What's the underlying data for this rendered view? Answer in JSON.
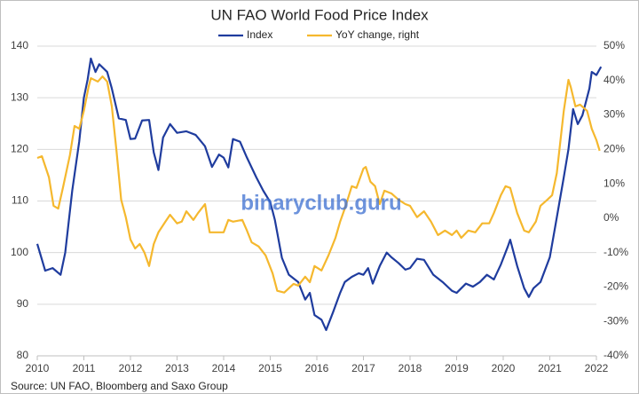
{
  "chart_data": {
    "type": "line",
    "title": "UN FAO World Food Price Index",
    "source": "Source:  UN FAO, Bloomberg and Saxo Group",
    "watermark": "binaryclub.guru",
    "xlim": [
      2010,
      2022.1
    ],
    "xticks": [
      2010,
      2011,
      2012,
      2013,
      2014,
      2015,
      2016,
      2017,
      2018,
      2019,
      2020,
      2021,
      2022
    ],
    "ylim": [
      80,
      140
    ],
    "yticks": [
      80,
      90,
      100,
      110,
      120,
      130,
      140
    ],
    "y2lim": [
      -40,
      50
    ],
    "y2ticks": [
      {
        "value": -40,
        "label": "-40%"
      },
      {
        "value": -30,
        "label": "-30%"
      },
      {
        "value": -20,
        "label": "-20%"
      },
      {
        "value": -10,
        "label": "-10%"
      },
      {
        "value": 0,
        "label": "0%"
      },
      {
        "value": 10,
        "label": "10%"
      },
      {
        "value": 20,
        "label": "20%"
      },
      {
        "value": 30,
        "label": "30%"
      },
      {
        "value": 40,
        "label": "40%"
      },
      {
        "value": 50,
        "label": "50%"
      }
    ],
    "grid": true,
    "legend": "top",
    "series": [
      {
        "name": "Index",
        "color": "#1f3c9e",
        "x": [
          2010.0,
          2010.17,
          2010.33,
          2010.5,
          2010.6,
          2010.75,
          2010.9,
          2011.0,
          2011.08,
          2011.15,
          2011.25,
          2011.33,
          2011.5,
          2011.6,
          2011.75,
          2011.9,
          2012.0,
          2012.1,
          2012.25,
          2012.4,
          2012.5,
          2012.6,
          2012.7,
          2012.85,
          2013.0,
          2013.2,
          2013.4,
          2013.6,
          2013.75,
          2013.9,
          2014.0,
          2014.1,
          2014.2,
          2014.35,
          2014.5,
          2014.7,
          2014.85,
          2015.0,
          2015.1,
          2015.25,
          2015.4,
          2015.6,
          2015.75,
          2015.85,
          2015.95,
          2016.1,
          2016.2,
          2016.35,
          2016.5,
          2016.6,
          2016.75,
          2016.9,
          2017.0,
          2017.1,
          2017.2,
          2017.35,
          2017.5,
          2017.6,
          2017.75,
          2017.9,
          2018.0,
          2018.15,
          2018.3,
          2018.5,
          2018.7,
          2018.9,
          2019.0,
          2019.2,
          2019.35,
          2019.5,
          2019.65,
          2019.8,
          2019.95,
          2020.1,
          2020.15,
          2020.3,
          2020.45,
          2020.55,
          2020.65,
          2020.8,
          2021.0,
          2021.15,
          2021.3,
          2021.4,
          2021.5,
          2021.6,
          2021.7,
          2021.85,
          2021.9,
          2022.0,
          2022.1
        ],
        "values": [
          101.7,
          96.5,
          97,
          95.7,
          100,
          112,
          121.5,
          130,
          133.5,
          137.6,
          135,
          136.5,
          135,
          131.8,
          126,
          125.7,
          122,
          122.1,
          125.6,
          125.7,
          119.4,
          116,
          122.3,
          124.9,
          123.2,
          123.5,
          122.8,
          120.6,
          116.6,
          119,
          118.4,
          116.5,
          122,
          121.5,
          118.4,
          114.6,
          112,
          109.8,
          106.3,
          99,
          95.7,
          94.3,
          90.9,
          92.2,
          87.9,
          87,
          85,
          88.5,
          92.2,
          94.3,
          95.3,
          96,
          95.7,
          97,
          94,
          97.4,
          100,
          99.1,
          98,
          96.7,
          97,
          98.8,
          98.6,
          95.7,
          94.3,
          92.6,
          92.2,
          94,
          93.4,
          94.3,
          95.7,
          94.8,
          97.7,
          101.2,
          102.5,
          97.4,
          93.1,
          91.4,
          93.1,
          94.3,
          99.1,
          106.8,
          114.6,
          120,
          127.8,
          124.9,
          126.6,
          131.8,
          135,
          134.4,
          136
        ]
      },
      {
        "name": "YoY change, right",
        "color": "#f5b82e",
        "axis": "y2",
        "x": [
          2010.0,
          2010.1,
          2010.25,
          2010.35,
          2010.45,
          2010.55,
          2010.7,
          2010.8,
          2010.9,
          2011.0,
          2011.1,
          2011.15,
          2011.3,
          2011.4,
          2011.5,
          2011.6,
          2011.7,
          2011.8,
          2011.9,
          2012.0,
          2012.1,
          2012.2,
          2012.3,
          2012.4,
          2012.5,
          2012.6,
          2012.75,
          2012.85,
          2013.0,
          2013.1,
          2013.2,
          2013.35,
          2013.45,
          2013.6,
          2013.7,
          2013.85,
          2014.0,
          2014.1,
          2014.2,
          2014.4,
          2014.5,
          2014.6,
          2014.75,
          2014.9,
          2015.05,
          2015.15,
          2015.3,
          2015.5,
          2015.6,
          2015.75,
          2015.85,
          2015.95,
          2016.1,
          2016.25,
          2016.4,
          2016.5,
          2016.6,
          2016.75,
          2016.85,
          2017.0,
          2017.05,
          2017.15,
          2017.25,
          2017.35,
          2017.45,
          2017.6,
          2017.75,
          2017.9,
          2018.0,
          2018.15,
          2018.3,
          2018.45,
          2018.6,
          2018.75,
          2018.9,
          2019.0,
          2019.1,
          2019.25,
          2019.4,
          2019.55,
          2019.7,
          2019.8,
          2019.95,
          2020.05,
          2020.15,
          2020.3,
          2020.45,
          2020.55,
          2020.7,
          2020.8,
          2020.95,
          2021.05,
          2021.15,
          2021.3,
          2021.4,
          2021.45,
          2021.55,
          2021.65,
          2021.8,
          2021.9,
          2022.0,
          2022.07
        ],
        "values": [
          17.5,
          18,
          11.9,
          3.6,
          2.8,
          8.8,
          18.3,
          26.8,
          26,
          31.2,
          38.1,
          40.7,
          39.7,
          41.2,
          39.7,
          32.5,
          19.6,
          5.4,
          0.3,
          -6.2,
          -8.8,
          -7.5,
          -10,
          -13.9,
          -7.5,
          -4.1,
          -1,
          1,
          -1.5,
          -1,
          2,
          -0.5,
          1.5,
          4.1,
          -4.1,
          -4.1,
          -4.1,
          -0.5,
          -1,
          -0.5,
          -3.6,
          -7,
          -8.2,
          -10.8,
          -16,
          -21.1,
          -21.6,
          -19.1,
          -19.6,
          -17,
          -18.6,
          -13.9,
          -15.2,
          -10.8,
          -5.7,
          -1,
          2.8,
          9.3,
          8.8,
          14.4,
          14.9,
          10.6,
          9.3,
          4.1,
          8,
          7.2,
          5.4,
          4.1,
          3.6,
          0.3,
          2,
          -1,
          -4.9,
          -3.6,
          -4.9,
          -3.6,
          -5.7,
          -3.6,
          -4.1,
          -1.5,
          -1.5,
          1.5,
          6.7,
          9.3,
          8.8,
          1.5,
          -3.6,
          -4.1,
          -1,
          3.6,
          5.4,
          6.7,
          13.1,
          31.2,
          40.2,
          38.1,
          32.5,
          33,
          31.2,
          26,
          22.7,
          19.6
        ]
      }
    ]
  }
}
